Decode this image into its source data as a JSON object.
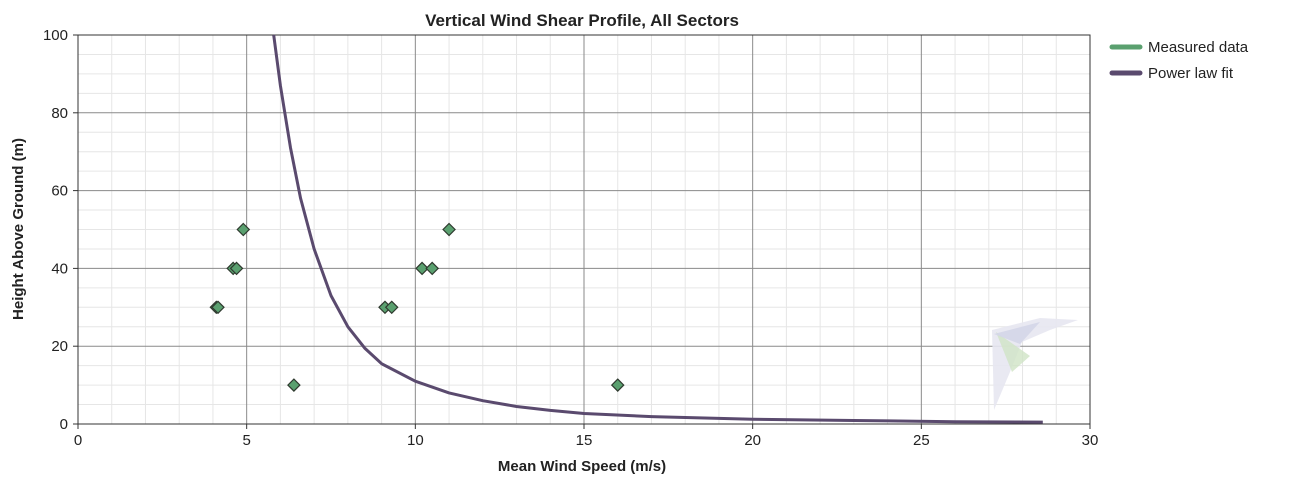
{
  "chart_data": {
    "type": "scatter",
    "title": "Vertical Wind Shear Profile, All Sectors",
    "xlabel": "Mean Wind Speed (m/s)",
    "ylabel": "Height Above Ground (m)",
    "xlim": [
      0,
      30
    ],
    "ylim": [
      0,
      100
    ],
    "xticks": [
      "0",
      "5",
      "10",
      "15",
      "20",
      "25",
      "30"
    ],
    "yticks": [
      "0",
      "20",
      "40",
      "60",
      "80",
      "100"
    ],
    "grid": true,
    "legend_position": "right",
    "series": [
      {
        "name": "Measured data",
        "kind": "scatter",
        "marker": "diamond",
        "color": "#5aa06f",
        "points": [
          {
            "x": 4.1,
            "y": 30
          },
          {
            "x": 4.15,
            "y": 30
          },
          {
            "x": 4.6,
            "y": 40
          },
          {
            "x": 4.7,
            "y": 40
          },
          {
            "x": 4.9,
            "y": 50
          },
          {
            "x": 6.4,
            "y": 10
          },
          {
            "x": 9.1,
            "y": 30
          },
          {
            "x": 9.3,
            "y": 30
          },
          {
            "x": 10.2,
            "y": 40
          },
          {
            "x": 10.5,
            "y": 40
          },
          {
            "x": 11.0,
            "y": 50
          },
          {
            "x": 16.0,
            "y": 10
          }
        ]
      },
      {
        "name": "Power law fit",
        "kind": "line",
        "color": "#5a4a6e",
        "points": [
          {
            "x": 5.8,
            "y": 100
          },
          {
            "x": 6.0,
            "y": 87
          },
          {
            "x": 6.3,
            "y": 71
          },
          {
            "x": 6.6,
            "y": 58
          },
          {
            "x": 7.0,
            "y": 45
          },
          {
            "x": 7.5,
            "y": 33
          },
          {
            "x": 8.0,
            "y": 25
          },
          {
            "x": 8.5,
            "y": 19.5
          },
          {
            "x": 9.0,
            "y": 15.5
          },
          {
            "x": 10.0,
            "y": 11
          },
          {
            "x": 11.0,
            "y": 8
          },
          {
            "x": 12.0,
            "y": 6
          },
          {
            "x": 13.0,
            "y": 4.5
          },
          {
            "x": 14.0,
            "y": 3.5
          },
          {
            "x": 15.0,
            "y": 2.7
          },
          {
            "x": 17.0,
            "y": 1.9
          },
          {
            "x": 20.0,
            "y": 1.2
          },
          {
            "x": 23.0,
            "y": 0.9
          },
          {
            "x": 26.0,
            "y": 0.6
          },
          {
            "x": 28.6,
            "y": 0.5
          }
        ]
      }
    ]
  }
}
